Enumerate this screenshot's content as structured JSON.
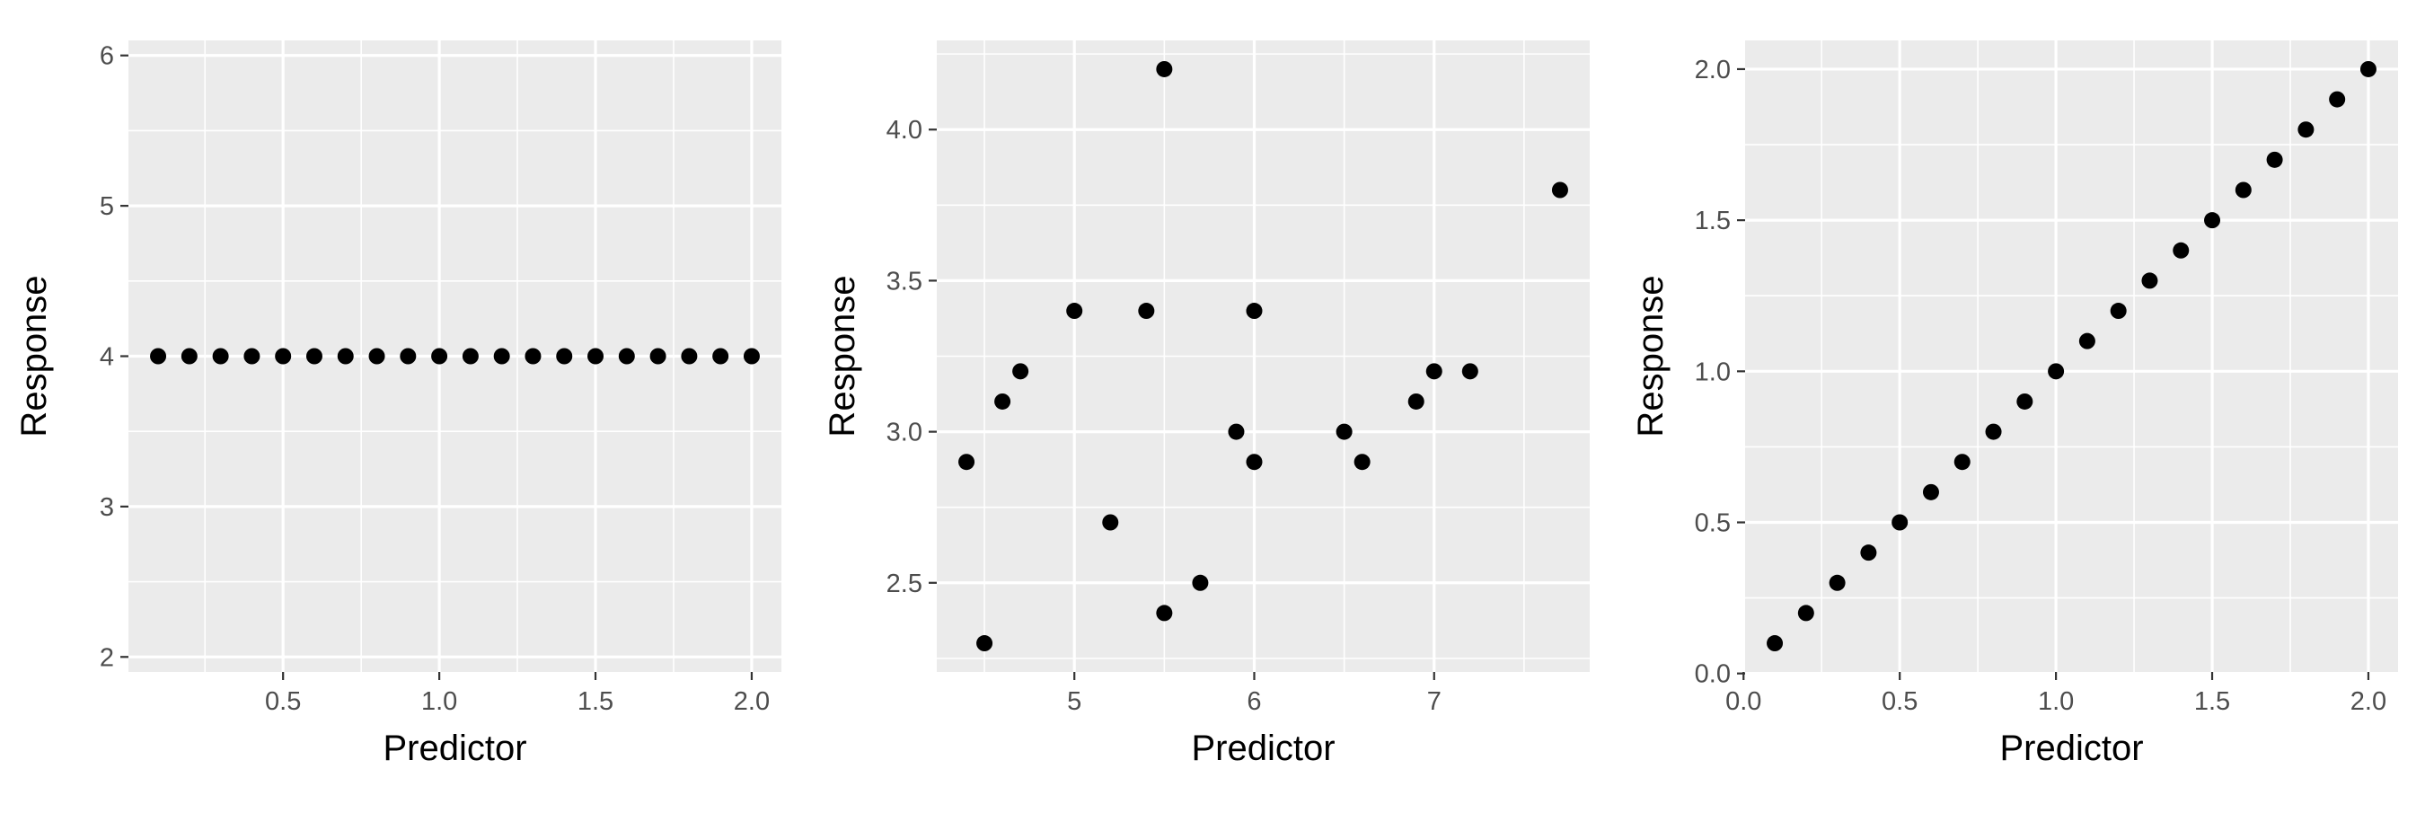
{
  "chart_data": [
    {
      "type": "scatter",
      "xlabel": "Predictor",
      "ylabel": "Response",
      "xlim": [
        0.005,
        2.095
      ],
      "ylim": [
        1.9,
        6.1
      ],
      "x_ticks": [
        {
          "value": 0.5,
          "label": "0.5"
        },
        {
          "value": 1.0,
          "label": "1.0"
        },
        {
          "value": 1.5,
          "label": "1.5"
        },
        {
          "value": 2.0,
          "label": "2.0"
        }
      ],
      "y_ticks": [
        {
          "value": 2,
          "label": "2"
        },
        {
          "value": 3,
          "label": "3"
        },
        {
          "value": 4,
          "label": "4"
        },
        {
          "value": 5,
          "label": "5"
        },
        {
          "value": 6,
          "label": "6"
        }
      ],
      "grid": true,
      "points": [
        {
          "x": 0.1,
          "y": 4
        },
        {
          "x": 0.2,
          "y": 4
        },
        {
          "x": 0.3,
          "y": 4
        },
        {
          "x": 0.4,
          "y": 4
        },
        {
          "x": 0.5,
          "y": 4
        },
        {
          "x": 0.6,
          "y": 4
        },
        {
          "x": 0.7,
          "y": 4
        },
        {
          "x": 0.8,
          "y": 4
        },
        {
          "x": 0.9,
          "y": 4
        },
        {
          "x": 1.0,
          "y": 4
        },
        {
          "x": 1.1,
          "y": 4
        },
        {
          "x": 1.2,
          "y": 4
        },
        {
          "x": 1.3,
          "y": 4
        },
        {
          "x": 1.4,
          "y": 4
        },
        {
          "x": 1.5,
          "y": 4
        },
        {
          "x": 1.6,
          "y": 4
        },
        {
          "x": 1.7,
          "y": 4
        },
        {
          "x": 1.8,
          "y": 4
        },
        {
          "x": 1.9,
          "y": 4
        },
        {
          "x": 2.0,
          "y": 4
        }
      ]
    },
    {
      "type": "scatter",
      "xlabel": "Predictor",
      "ylabel": "Response",
      "xlim": [
        4.235,
        7.865
      ],
      "ylim": [
        2.205,
        4.295
      ],
      "x_ticks": [
        {
          "value": 5,
          "label": "5"
        },
        {
          "value": 6,
          "label": "6"
        },
        {
          "value": 7,
          "label": "7"
        }
      ],
      "y_ticks": [
        {
          "value": 2.5,
          "label": "2.5"
        },
        {
          "value": 3.0,
          "label": "3.0"
        },
        {
          "value": 3.5,
          "label": "3.5"
        },
        {
          "value": 4.0,
          "label": "4.0"
        }
      ],
      "grid": true,
      "points": [
        {
          "x": 4.4,
          "y": 2.9
        },
        {
          "x": 4.5,
          "y": 2.3
        },
        {
          "x": 4.6,
          "y": 3.1
        },
        {
          "x": 4.7,
          "y": 3.2
        },
        {
          "x": 5.0,
          "y": 3.4
        },
        {
          "x": 5.2,
          "y": 2.7
        },
        {
          "x": 5.4,
          "y": 3.4
        },
        {
          "x": 5.5,
          "y": 4.2
        },
        {
          "x": 5.5,
          "y": 2.4
        },
        {
          "x": 5.7,
          "y": 2.5
        },
        {
          "x": 5.9,
          "y": 3.0
        },
        {
          "x": 6.0,
          "y": 3.4
        },
        {
          "x": 6.0,
          "y": 2.9
        },
        {
          "x": 6.5,
          "y": 3.0
        },
        {
          "x": 6.6,
          "y": 2.9
        },
        {
          "x": 6.9,
          "y": 3.1
        },
        {
          "x": 7.0,
          "y": 3.2
        },
        {
          "x": 7.2,
          "y": 3.2
        },
        {
          "x": 7.7,
          "y": 3.8
        }
      ]
    },
    {
      "type": "scatter",
      "xlabel": "Predictor",
      "ylabel": "Response",
      "xlim": [
        0.005,
        2.095
      ],
      "ylim": [
        0.005,
        2.095
      ],
      "x_ticks": [
        {
          "value": 0.0,
          "label": "0.0"
        },
        {
          "value": 0.5,
          "label": "0.5"
        },
        {
          "value": 1.0,
          "label": "1.0"
        },
        {
          "value": 1.5,
          "label": "1.5"
        },
        {
          "value": 2.0,
          "label": "2.0"
        }
      ],
      "y_ticks": [
        {
          "value": 0.0,
          "label": "0.0"
        },
        {
          "value": 0.5,
          "label": "0.5"
        },
        {
          "value": 1.0,
          "label": "1.0"
        },
        {
          "value": 1.5,
          "label": "1.5"
        },
        {
          "value": 2.0,
          "label": "2.0"
        }
      ],
      "grid": true,
      "points": [
        {
          "x": 0.1,
          "y": 0.1
        },
        {
          "x": 0.2,
          "y": 0.2
        },
        {
          "x": 0.3,
          "y": 0.3
        },
        {
          "x": 0.4,
          "y": 0.4
        },
        {
          "x": 0.5,
          "y": 0.5
        },
        {
          "x": 0.6,
          "y": 0.6
        },
        {
          "x": 0.7,
          "y": 0.7
        },
        {
          "x": 0.8,
          "y": 0.8
        },
        {
          "x": 0.9,
          "y": 0.9
        },
        {
          "x": 1.0,
          "y": 1.0
        },
        {
          "x": 1.1,
          "y": 1.1
        },
        {
          "x": 1.2,
          "y": 1.2
        },
        {
          "x": 1.3,
          "y": 1.3
        },
        {
          "x": 1.4,
          "y": 1.4
        },
        {
          "x": 1.5,
          "y": 1.5
        },
        {
          "x": 1.6,
          "y": 1.6
        },
        {
          "x": 1.7,
          "y": 1.7
        },
        {
          "x": 1.8,
          "y": 1.8
        },
        {
          "x": 1.9,
          "y": 1.9
        },
        {
          "x": 2.0,
          "y": 2.0
        }
      ]
    }
  ]
}
